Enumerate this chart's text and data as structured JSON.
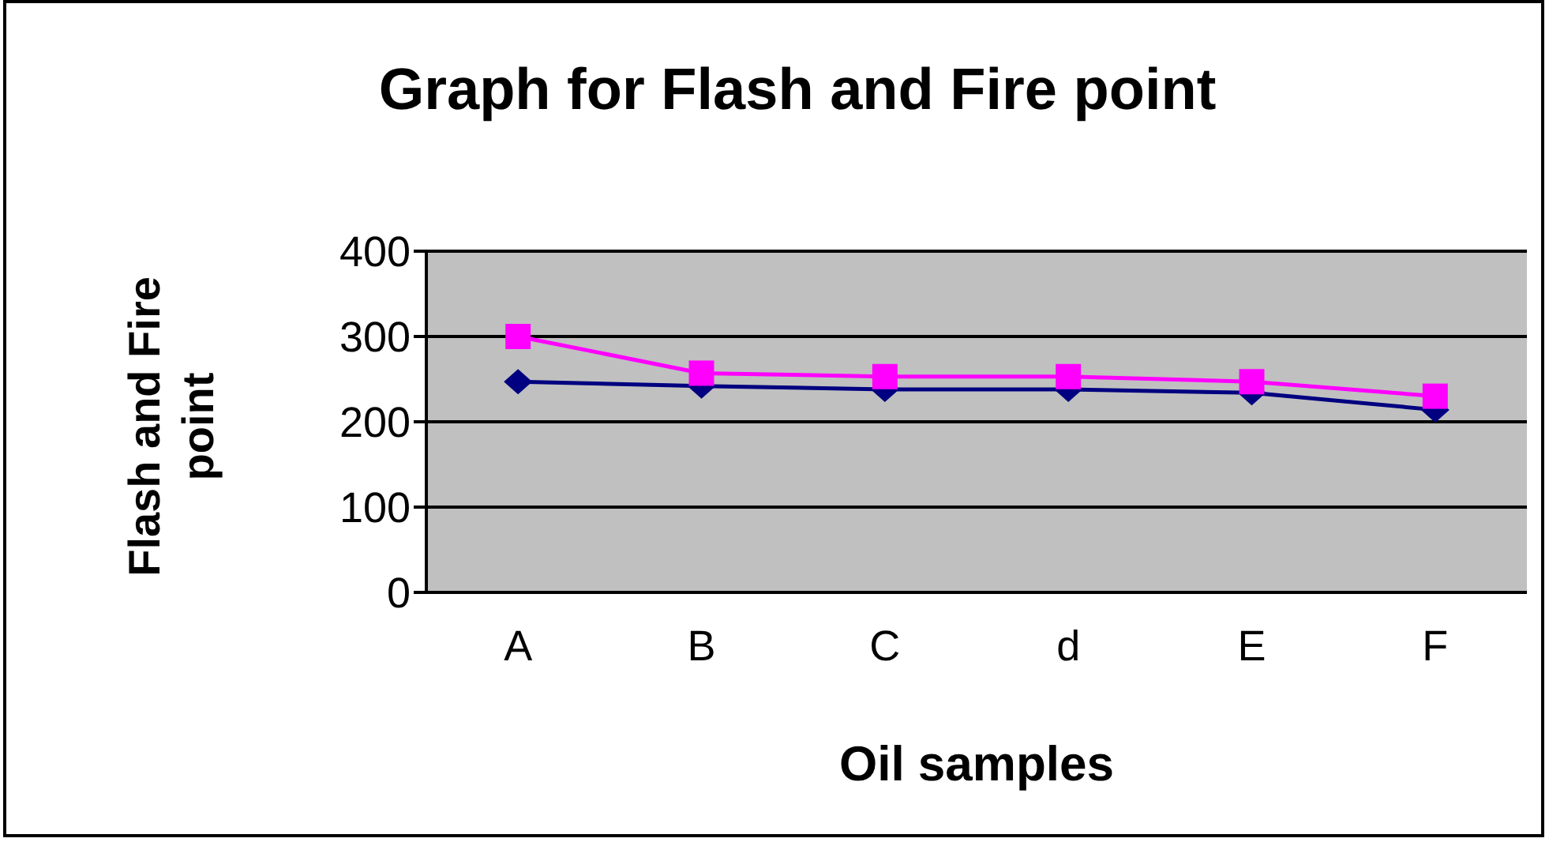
{
  "chart_data": {
    "type": "line",
    "title": "Graph for Flash and Fire point",
    "xlabel": "Oil samples",
    "ylabel": "Flash and Fire point",
    "categories": [
      "A",
      "B",
      "C",
      "d",
      "E",
      "F"
    ],
    "series": [
      {
        "color": "#000080",
        "marker": "diamond",
        "values": [
          247,
          242,
          238,
          238,
          234,
          214
        ]
      },
      {
        "color": "#ff00ff",
        "marker": "square",
        "values": [
          300,
          257,
          253,
          253,
          247,
          230
        ]
      }
    ],
    "ylim": [
      0,
      400
    ],
    "yticks": [
      0,
      100,
      200,
      300,
      400
    ],
    "grid": "y",
    "legend": false
  }
}
